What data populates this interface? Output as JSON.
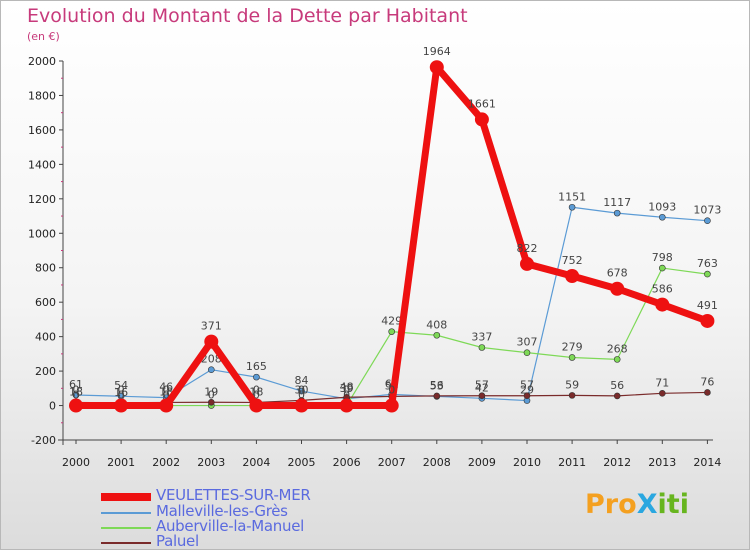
{
  "title": "Evolution du Montant de la Dette par Habitant",
  "unit": "(en €)",
  "logo": {
    "text": "ProXiti",
    "letters": [
      "P",
      "r",
      "o",
      "X",
      "i",
      "t",
      "i"
    ],
    "colors": [
      "#f4a020",
      "#f4a020",
      "#f4a020",
      "#2aa7e0",
      "#67b51f",
      "#67b51f",
      "#67b51f"
    ]
  },
  "chart_data": {
    "type": "line",
    "title": "Evolution du Montant de la Dette par Habitant",
    "ylabel": "(en €)",
    "xlabel": "",
    "x": [
      "2000",
      "2001",
      "2002",
      "2003",
      "2004",
      "2005",
      "2006",
      "2007",
      "2008",
      "2009",
      "2010",
      "2011",
      "2012",
      "2013",
      "2014"
    ],
    "ylim": [
      -200,
      2000
    ],
    "yticks": [
      -200,
      0,
      200,
      400,
      600,
      800,
      1000,
      1200,
      1400,
      1600,
      1800,
      2000
    ],
    "ytick_labels": [
      "-200",
      "0",
      "200",
      "400",
      "600",
      "800",
      "1000",
      "1200",
      "1400",
      "1600",
      "1800",
      "2000"
    ],
    "grid": false,
    "legend_position": "bottom-left",
    "series": [
      {
        "name": "VEULETTES-SUR-MER",
        "color": "#ee1111",
        "width": 7,
        "marker": 7,
        "values": [
          0,
          0,
          0,
          371,
          0,
          0,
          0,
          0,
          1964,
          1661,
          822,
          752,
          678,
          586,
          491
        ],
        "labels": [
          "0",
          "0",
          "0",
          "371",
          "0",
          "0",
          "0",
          "0",
          "1964",
          "1661",
          "822",
          "752",
          "678",
          "586",
          "491"
        ]
      },
      {
        "name": "Malleville-les-Grès",
        "color": "#5b9bd5",
        "width": 1.2,
        "marker": 3,
        "values": [
          61,
          54,
          46,
          208,
          165,
          84,
          39,
          65,
          53,
          42,
          29,
          1151,
          1117,
          1093,
          1073
        ],
        "labels": [
          "61",
          "54",
          "46",
          "208",
          "165",
          "84",
          "39",
          "65",
          "53",
          "42",
          "29",
          "1151",
          "1117",
          "1093",
          "1073"
        ]
      },
      {
        "name": "Auberville-la-Manuel",
        "color": "#7ed957",
        "width": 1.2,
        "marker": 3,
        "values": [
          0,
          0,
          0,
          0,
          0,
          0,
          0,
          429,
          408,
          337,
          307,
          279,
          268,
          798,
          763
        ],
        "labels": [
          "0",
          "0",
          "0",
          "0",
          "0",
          "0",
          "0",
          "429",
          "408",
          "337",
          "307",
          "279",
          "268",
          "798",
          "763"
        ]
      },
      {
        "name": "Paluel",
        "color": "#7a2b2b",
        "width": 1.2,
        "marker": 3,
        "values": [
          18,
          16,
          18,
          19,
          18,
          30,
          48,
          53,
          56,
          57,
          57,
          59,
          56,
          71,
          76
        ],
        "labels": [
          "18",
          "16",
          "18",
          "19",
          "18",
          "30",
          "48",
          "53",
          "56",
          "57",
          "57",
          "59",
          "56",
          "71",
          "76"
        ]
      }
    ]
  }
}
